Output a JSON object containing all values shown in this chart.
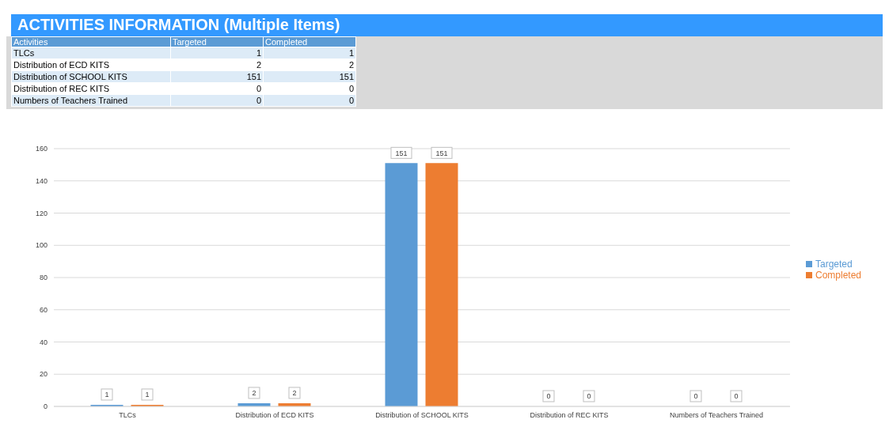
{
  "chart_data": [
    {
      "type": "other",
      "title": "ACTIVITIES INFORMATION (Multiple Items)",
      "annotations": [
        "Activities"
      ],
      "categories": [
        "TLCs",
        "Distribution of ECD KITS",
        "Distribution of SCHOOL KITS",
        "Distribution of REC KITS",
        "Numbers of Teachers Trained"
      ],
      "series": [
        {
          "name": "Targeted",
          "colors": [
            "#ddebf7",
            "#ffffff",
            "#ddebf7",
            "#ffffff",
            "#ddebf7"
          ],
          "values": [
            1,
            2,
            151,
            0,
            0
          ],
          "value_labels": [
            "1",
            "2",
            "151",
            "0",
            "0"
          ]
        },
        {
          "name": "Completed",
          "colors": [
            "#ddebf7",
            "#ffffff",
            "#ddebf7",
            "#ffffff",
            "#ddebf7"
          ],
          "values": [
            1,
            2,
            151,
            0,
            0
          ],
          "value_labels": [
            "1",
            "2",
            "151",
            "0",
            "0"
          ]
        }
      ]
    },
    {
      "type": "bar",
      "categories": [
        "TLCs",
        "Distribution of ECD KITS",
        "Distribution of SCHOOL KITS",
        "Distribution of REC KITS",
        "Numbers of Teachers Trained"
      ],
      "series": [
        {
          "name": "Targeted",
          "color": "#5b9bd5",
          "values": [
            1,
            2,
            151,
            0,
            0
          ]
        },
        {
          "name": "Completed",
          "color": "#ed7d31",
          "values": [
            1,
            2,
            151,
            0,
            0
          ]
        }
      ],
      "ylim": [
        0,
        160
      ],
      "yticks": [
        0,
        20,
        40,
        60,
        80,
        100,
        120,
        140,
        160
      ],
      "grid": "y",
      "legend": "right",
      "data_labels": true
    }
  ]
}
